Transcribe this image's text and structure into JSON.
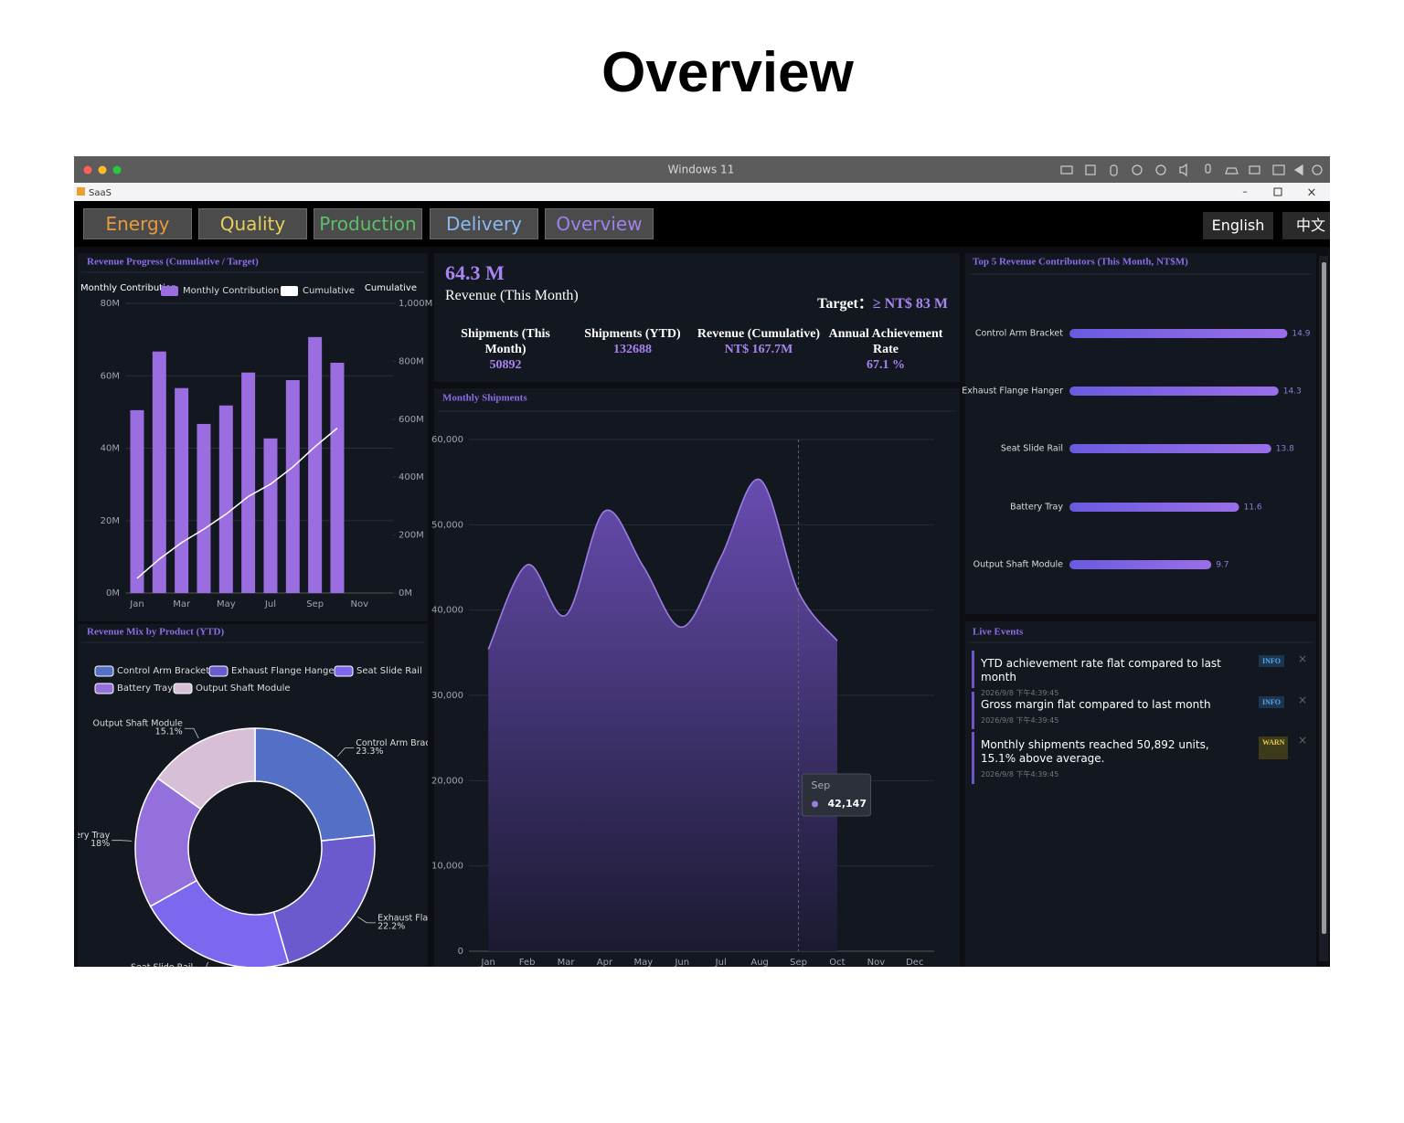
{
  "page_title": "Overview",
  "window": {
    "title": "Windows 11",
    "app": "SaaS"
  },
  "nav": {
    "tabs": [
      "Energy",
      "Quality",
      "Production",
      "Delivery",
      "Overview"
    ],
    "languages": [
      "English",
      "中文"
    ]
  },
  "revenue_progress": {
    "type": "bar",
    "title": "Revenue Progress (Cumulative / Target)",
    "y_label": "Monthly Contribution",
    "y2_label": "Cumulative",
    "categories": [
      "Jan",
      null,
      "Mar",
      null,
      "May",
      null,
      "Jul",
      null,
      "Sep",
      null,
      "Nov",
      null
    ],
    "series": [
      {
        "name": "Monthly Contribution",
        "color": "#9a6ee0",
        "values": [
          50.5,
          66.7,
          56.6,
          46.7,
          51.8,
          60.9,
          42.7,
          58.8,
          70.7,
          63.6,
          null,
          null
        ]
      },
      {
        "name": "Cumulative",
        "color": "#ffffff",
        "axis": "y2",
        "values": [
          50.5,
          117.2,
          173.8,
          220.5,
          272.3,
          333.2,
          375.9,
          434.7,
          505.4,
          569.0,
          null,
          null
        ]
      }
    ],
    "ylim": [
      0,
      80
    ],
    "yticks": [
      {
        "value": 0,
        "label": "0M"
      },
      {
        "value": 20,
        "label": "20M"
      },
      {
        "value": 40,
        "label": "40M"
      },
      {
        "value": 60,
        "label": "60M"
      },
      {
        "value": 80,
        "label": "80M"
      }
    ],
    "y2lim": [
      0,
      1000
    ],
    "y2ticks": [
      {
        "value": 0,
        "label": "0M"
      },
      {
        "value": 200,
        "label": "200M"
      },
      {
        "value": 400,
        "label": "400M"
      },
      {
        "value": 600,
        "label": "600M"
      },
      {
        "value": 800,
        "label": "800M"
      },
      {
        "value": 1000,
        "label": "1,000M"
      }
    ]
  },
  "revenue_mix": {
    "type": "pie",
    "title": "Revenue Mix by Product (YTD)",
    "categories": [
      "Control Arm Bracket",
      "Exhaust Flange Hanger",
      "Seat Slide Rail",
      "Battery Tray",
      "Output Shaft Module"
    ],
    "values": [
      23.3,
      22.2,
      21.4,
      18,
      15.1
    ],
    "value_labels": [
      "23.3%",
      "22.2%",
      null,
      "18%",
      "15.1%"
    ],
    "colors": [
      "#5470c6",
      "#6a5acd",
      "#7b68ee",
      "#9370db",
      "#d8bfd8"
    ]
  },
  "kpi": {
    "main_value": "64.3 M",
    "main_label": "Revenue (This Month)",
    "target_label": "Target：",
    "target_value": "≥ NT$ 83 M",
    "items": [
      {
        "label": "Shipments (This Month)",
        "value": "50892"
      },
      {
        "label": "Shipments (YTD)",
        "value": "132688"
      },
      {
        "label": "Revenue (Cumulative)",
        "value": "NT$ 167.7M"
      },
      {
        "label": "Annual Achievement Rate",
        "value": "67.1 %"
      }
    ]
  },
  "monthly_shipments": {
    "type": "area",
    "title": "Monthly Shipments",
    "categories": [
      "Jan",
      "Feb",
      "Mar",
      "Apr",
      "May",
      "Jun",
      "Jul",
      "Aug",
      "Sep",
      "Oct",
      "Nov",
      "Dec"
    ],
    "values": [
      35400,
      45300,
      39400,
      51600,
      45100,
      38000,
      46200,
      55300,
      42147,
      36400,
      null,
      null
    ],
    "value_labels": [
      null,
      null,
      null,
      null,
      null,
      null,
      null,
      null,
      "42,147",
      null,
      null,
      null
    ],
    "color": "#9b7fe0",
    "ylim": [
      0,
      60000
    ],
    "yticks": [
      0,
      {
        "value": 10000,
        "label": "10,000"
      },
      {
        "value": 20000,
        "label": "20,000"
      },
      {
        "value": 30000,
        "label": "30,000"
      },
      {
        "value": 40000,
        "label": "40,000"
      },
      {
        "value": 50000,
        "label": "50,000"
      },
      {
        "value": 60000,
        "label": "60,000"
      }
    ]
  },
  "top_contributors": {
    "type": "bar",
    "orientation": "horizontal",
    "title": "Top 5 Revenue Contributors (This Month, NT$M)",
    "categories": [
      "Control Arm Bracket",
      "Exhaust Flange Hanger",
      "Seat Slide Rail",
      "Battery Tray",
      "Output Shaft Module"
    ],
    "values": [
      14.9,
      14.3,
      13.8,
      11.6,
      9.7
    ],
    "color": "#7b5cf0",
    "xlim": [
      0,
      16
    ]
  },
  "live_events": {
    "title": "Live Events",
    "items": [
      {
        "text": "YTD achievement rate flat compared to last month",
        "time": "2026/9/8 下午4:39:45",
        "level": "INFO"
      },
      {
        "text": "Gross margin flat compared to last month",
        "time": "2026/9/8 下午4:39:45",
        "level": "INFO"
      },
      {
        "text": "Monthly shipments reached 50,892 units, 15.1% above average.",
        "time": "2026/9/8 下午4:39:45",
        "level": "WARN"
      }
    ]
  }
}
